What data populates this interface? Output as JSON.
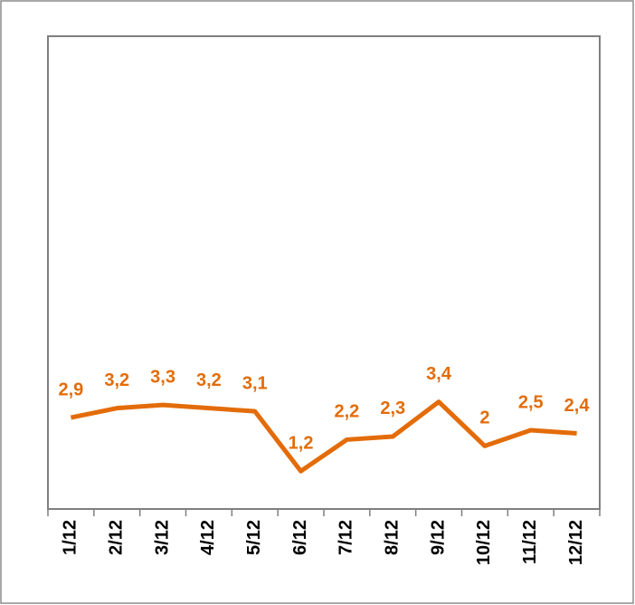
{
  "chart_data": {
    "type": "line",
    "categories": [
      "1/12",
      "2/12",
      "3/12",
      "4/12",
      "5/12",
      "6/12",
      "7/12",
      "8/12",
      "9/12",
      "10/12",
      "11/12",
      "12/12"
    ],
    "series": [
      {
        "color": "#e36c09",
        "values": [
          2.9,
          3.2,
          3.3,
          3.2,
          3.1,
          1.2,
          2.2,
          2.3,
          3.4,
          2,
          2.5,
          2.4
        ],
        "value_labels": [
          "2,9",
          "3,2",
          "3,3",
          "3,2",
          "3,1",
          "1,2",
          "2,2",
          "2,3",
          "3,4",
          "2",
          "2,5",
          "2,4"
        ]
      }
    ],
    "ylim": [
      0,
      15
    ]
  }
}
